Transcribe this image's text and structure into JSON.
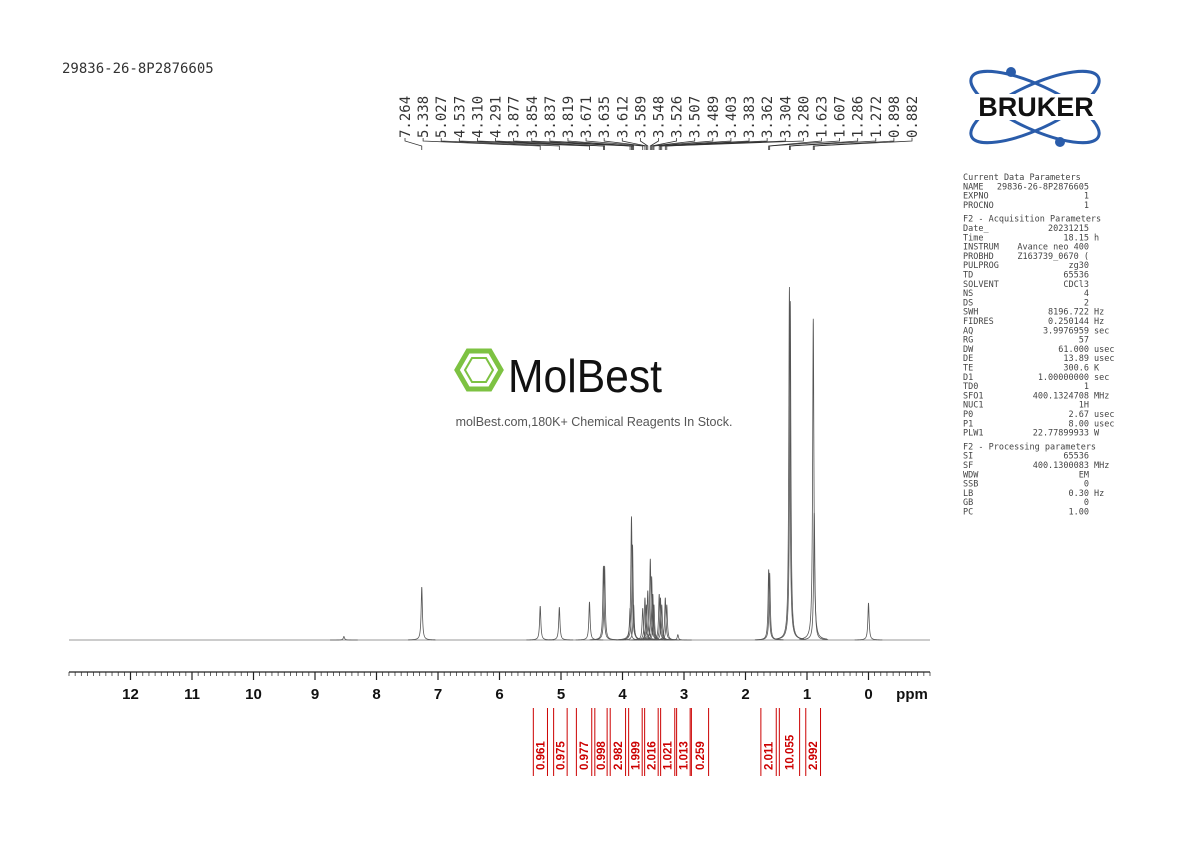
{
  "sample_id": "29836-26-8P2876605",
  "watermark": {
    "name": "MolBest",
    "tagline": "molBest.com,180K+ Chemical Reagents In Stock."
  },
  "logo": "BRUKER",
  "chart_data": {
    "type": "nmr",
    "xlabel": "ppm",
    "xlim": [
      13,
      -1
    ],
    "xticks": [
      12,
      11,
      10,
      9,
      8,
      7,
      6,
      5,
      4,
      3,
      2,
      1,
      0
    ],
    "peaks": {
      "values": [
        7.264,
        5.338,
        5.027,
        4.537,
        4.31,
        4.291,
        3.877,
        3.854,
        3.837,
        3.819,
        3.671,
        3.635,
        3.612,
        3.589,
        3.548,
        3.526,
        3.507,
        3.489,
        3.403,
        3.383,
        3.362,
        3.304,
        3.28,
        1.623,
        1.607,
        1.286,
        1.272,
        0.898,
        0.882
      ],
      "value_labels": [
        "7.264",
        "5.338",
        "5.027",
        "4.537",
        "4.310",
        "4.291",
        "3.877",
        "3.854",
        "3.837",
        "3.819",
        "3.671",
        "3.635",
        "3.612",
        "3.589",
        "3.548",
        "3.526",
        "3.507",
        "3.489",
        "3.403",
        "3.383",
        "3.362",
        "3.304",
        "3.280",
        "1.623",
        "1.607",
        "1.286",
        "1.272",
        "0.898",
        "0.882"
      ]
    },
    "signals": {
      "ppm": [
        8.53,
        7.264,
        5.338,
        5.027,
        4.537,
        4.31,
        4.291,
        3.877,
        3.854,
        3.837,
        3.819,
        3.671,
        3.635,
        3.612,
        3.589,
        3.548,
        3.526,
        3.507,
        3.489,
        3.403,
        3.383,
        3.362,
        3.304,
        3.28,
        3.1,
        1.623,
        1.607,
        1.286,
        1.272,
        0.898,
        0.882,
        0
      ],
      "heights": [
        1,
        15,
        9.6,
        9.3,
        10.8,
        21,
        21,
        9,
        35,
        27,
        10,
        9,
        12,
        10,
        14,
        23,
        18,
        13,
        10,
        13,
        12,
        10,
        12,
        10,
        1.5,
        20,
        19,
        100,
        96,
        91,
        36,
        10.5
      ]
    },
    "integrals": {
      "values": [
        0.961,
        0.975,
        0.977,
        0.998,
        2.982,
        1.999,
        2.016,
        1.021,
        1.013,
        0.259,
        2.011,
        10.055,
        2.992
      ],
      "ranges": [
        [
          5.45,
          5.22
        ],
        [
          5.12,
          4.9
        ],
        [
          4.75,
          4.5
        ],
        [
          4.45,
          4.25
        ],
        [
          4.2,
          3.95
        ],
        [
          3.9,
          3.68
        ],
        [
          3.64,
          3.42
        ],
        [
          3.38,
          3.15
        ],
        [
          3.12,
          2.9
        ],
        [
          2.88,
          2.6
        ],
        [
          1.75,
          1.5
        ],
        [
          1.45,
          1.12
        ],
        [
          1.02,
          0.78
        ]
      ]
    }
  },
  "parameters": [
    {
      "title": "Current Data Parameters",
      "rows": [
        [
          "NAME",
          "29836-26-8P2876605"
        ],
        [
          "EXPNO",
          "1"
        ],
        [
          "PROCNO",
          "1"
        ]
      ]
    },
    {
      "title": "F2 - Acquisition Parameters",
      "rows": [
        [
          "Date_",
          "20231215"
        ],
        [
          "Time",
          "18.15",
          "h"
        ],
        [
          "INSTRUM",
          "Avance neo 400"
        ],
        [
          "PROBHD",
          "Z163739_0670 ("
        ],
        [
          "PULPROG",
          "zg30"
        ],
        [
          "TD",
          "65536"
        ],
        [
          "SOLVENT",
          "CDCl3"
        ],
        [
          "NS",
          "4"
        ],
        [
          "DS",
          "2"
        ],
        [
          "SWH",
          "8196.722",
          "Hz"
        ],
        [
          "FIDRES",
          "0.250144",
          "Hz"
        ],
        [
          "AQ",
          "3.9976959",
          "sec"
        ],
        [
          "RG",
          "57"
        ],
        [
          "DW",
          "61.000",
          "usec"
        ],
        [
          "DE",
          "13.89",
          "usec"
        ],
        [
          "TE",
          "300.6",
          "K"
        ],
        [
          "D1",
          "1.00000000",
          "sec"
        ],
        [
          "TD0",
          "1"
        ],
        [
          "SFO1",
          "400.1324708",
          "MHz"
        ],
        [
          "NUC1",
          "1H"
        ],
        [
          "P0",
          "2.67",
          "usec"
        ],
        [
          "P1",
          "8.00",
          "usec"
        ],
        [
          "PLW1",
          "22.77899933",
          "W"
        ]
      ]
    },
    {
      "title": "F2 - Processing parameters",
      "rows": [
        [
          "SI",
          "65536"
        ],
        [
          "SF",
          "400.1300083",
          "MHz"
        ],
        [
          "WDW",
          "EM"
        ],
        [
          "SSB",
          "0"
        ],
        [
          "LB",
          "0.30",
          "Hz"
        ],
        [
          "GB",
          "0"
        ],
        [
          "PC",
          "1.00"
        ]
      ]
    }
  ]
}
